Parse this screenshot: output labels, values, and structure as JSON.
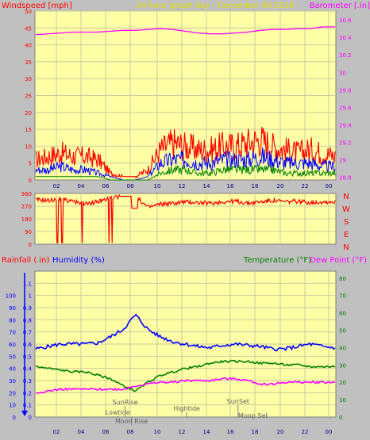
{
  "chart_data": [
    {
      "type": "line",
      "title": "24 hour graph day : December 08 2018",
      "left_label": "Windspeed [mph]",
      "right_label": "Barometer [.in]",
      "left_ticks": [
        "0",
        "5",
        "10",
        "15",
        "20",
        "25",
        "30",
        "35",
        "40",
        "45",
        "50"
      ],
      "right_ticks": [
        "28.8",
        "29",
        "29.2",
        "29.4",
        "29.6",
        "29.8",
        "30",
        "30.2",
        "30.4",
        "30.6"
      ],
      "x_ticks": [
        "02",
        "04",
        "06",
        "08",
        "10",
        "12",
        "14",
        "16",
        "18",
        "20",
        "22",
        "00"
      ],
      "ylim_left": [
        0,
        50
      ],
      "ylim_right": [
        28.77,
        30.7
      ],
      "colors": {
        "gust": "#ff0000",
        "average": "#0000ff",
        "calm": "#008000",
        "barometer": "#ff00ff"
      },
      "x": [
        0,
        1,
        2,
        3,
        4,
        5,
        6,
        7,
        8,
        9,
        10,
        11,
        12,
        13,
        14,
        15,
        16,
        17,
        18,
        19,
        20,
        21,
        22,
        23,
        24
      ],
      "series": [
        {
          "key": "gust",
          "values": [
            6,
            7,
            8,
            7,
            7,
            6,
            2,
            1,
            1,
            3,
            9,
            11,
            10,
            9,
            9,
            10,
            10,
            11,
            12,
            10,
            9,
            8,
            9,
            8,
            7
          ]
        },
        {
          "key": "average",
          "values": [
            3,
            3,
            4,
            3,
            3,
            2,
            1,
            0,
            0,
            1,
            5,
            6,
            6,
            5,
            5,
            6,
            6,
            6,
            7,
            6,
            5,
            5,
            5,
            4,
            4
          ]
        },
        {
          "key": "calm",
          "values": [
            1,
            1,
            1,
            1,
            1,
            1,
            0,
            0,
            0,
            0,
            2,
            3,
            3,
            2,
            2,
            3,
            3,
            3,
            3,
            3,
            2,
            2,
            2,
            2,
            2
          ]
        },
        {
          "key": "barometer",
          "axis": "right",
          "values": [
            30.43,
            30.44,
            30.45,
            30.46,
            30.46,
            30.46,
            30.47,
            30.48,
            30.48,
            30.49,
            30.5,
            30.49,
            30.47,
            30.45,
            30.44,
            30.44,
            30.45,
            30.46,
            30.48,
            30.49,
            30.49,
            30.5,
            30.5,
            30.52,
            30.52
          ]
        }
      ]
    },
    {
      "type": "line",
      "left_ticks": [
        "0",
        "90",
        "180",
        "270",
        "360"
      ],
      "right_labels": [
        "N",
        "W",
        "S",
        "E",
        "N"
      ],
      "ylim": [
        0,
        360
      ],
      "colors": {
        "direction": "#ff0000"
      },
      "x": [
        0,
        1,
        2,
        3,
        4,
        5,
        6,
        7,
        8,
        9,
        10,
        11,
        12,
        13,
        14,
        15,
        16,
        17,
        18,
        19,
        20,
        21,
        22,
        23,
        24
      ],
      "series": [
        {
          "key": "direction",
          "values": [
            315,
            310,
            320,
            300,
            290,
            300,
            330,
            340,
            340,
            260,
            285,
            290,
            300,
            295,
            290,
            300,
            305,
            290,
            300,
            310,
            300,
            305,
            295,
            300,
            300
          ]
        }
      ]
    },
    {
      "type": "line",
      "rain_label": "Rainfall (.in)",
      "humidity_label": "Humidity (%)",
      "temp_label": "Temperature (°F)",
      "dew_label": "Dew Point (°F)",
      "humidity_ticks": [
        "0",
        "10",
        "20",
        "30",
        "40",
        "50",
        "60",
        "70",
        "80",
        "90",
        "100"
      ],
      "rain_ticks": [
        "0",
        "0.1",
        "0.2",
        "0.3",
        "0.4",
        "0.5",
        "0.6",
        "0.7",
        "0.8",
        "0.9",
        "1",
        "1.1"
      ],
      "temp_ticks": [
        "0",
        "10",
        "20",
        "30",
        "40",
        "50",
        "60",
        "70",
        "80"
      ],
      "x_ticks": [
        "02",
        "04",
        "06",
        "08",
        "10",
        "12",
        "14",
        "16",
        "18",
        "20",
        "22",
        "00"
      ],
      "ylim_humidity": [
        0,
        120
      ],
      "ylim_temp": [
        0,
        84
      ],
      "colors": {
        "humidity": "#0000ff",
        "temperature": "#008000",
        "dewpoint": "#ff00ff",
        "rain": "#0000ff"
      },
      "annotations": [
        {
          "text": "SunRise",
          "x": 7.2
        },
        {
          "text": "Lowtide",
          "x": 6.6
        },
        {
          "text": "Moon Rise",
          "x": 7.7
        },
        {
          "text": "Hightide",
          "x": 12.1
        },
        {
          "text": "SunSet",
          "x": 16.2
        },
        {
          "text": "Moon Set",
          "x": 17.4
        }
      ],
      "x": [
        0,
        1,
        2,
        3,
        4,
        5,
        6,
        7,
        8,
        9,
        10,
        11,
        12,
        13,
        14,
        15,
        16,
        17,
        18,
        19,
        20,
        21,
        22,
        23,
        24
      ],
      "series": [
        {
          "key": "humidity",
          "values": [
            56,
            58,
            60,
            60,
            60,
            61,
            66,
            72,
            84,
            72,
            66,
            62,
            60,
            58,
            57,
            59,
            60,
            59,
            58,
            56,
            56,
            58,
            60,
            58,
            57
          ]
        },
        {
          "key": "temperature",
          "axis": "temp",
          "values": [
            29,
            28,
            27,
            26,
            26,
            24,
            22,
            18,
            15,
            20,
            24,
            26,
            28,
            29,
            31,
            32,
            32,
            32,
            31,
            31,
            30,
            30,
            29,
            29,
            29
          ]
        },
        {
          "key": "dewpoint",
          "axis": "temp",
          "values": [
            14,
            15,
            16,
            16,
            16,
            16,
            16,
            16,
            18,
            19,
            20,
            20,
            21,
            21,
            21,
            22,
            22,
            21,
            19,
            19,
            20,
            20,
            20,
            20,
            20
          ]
        }
      ]
    }
  ]
}
